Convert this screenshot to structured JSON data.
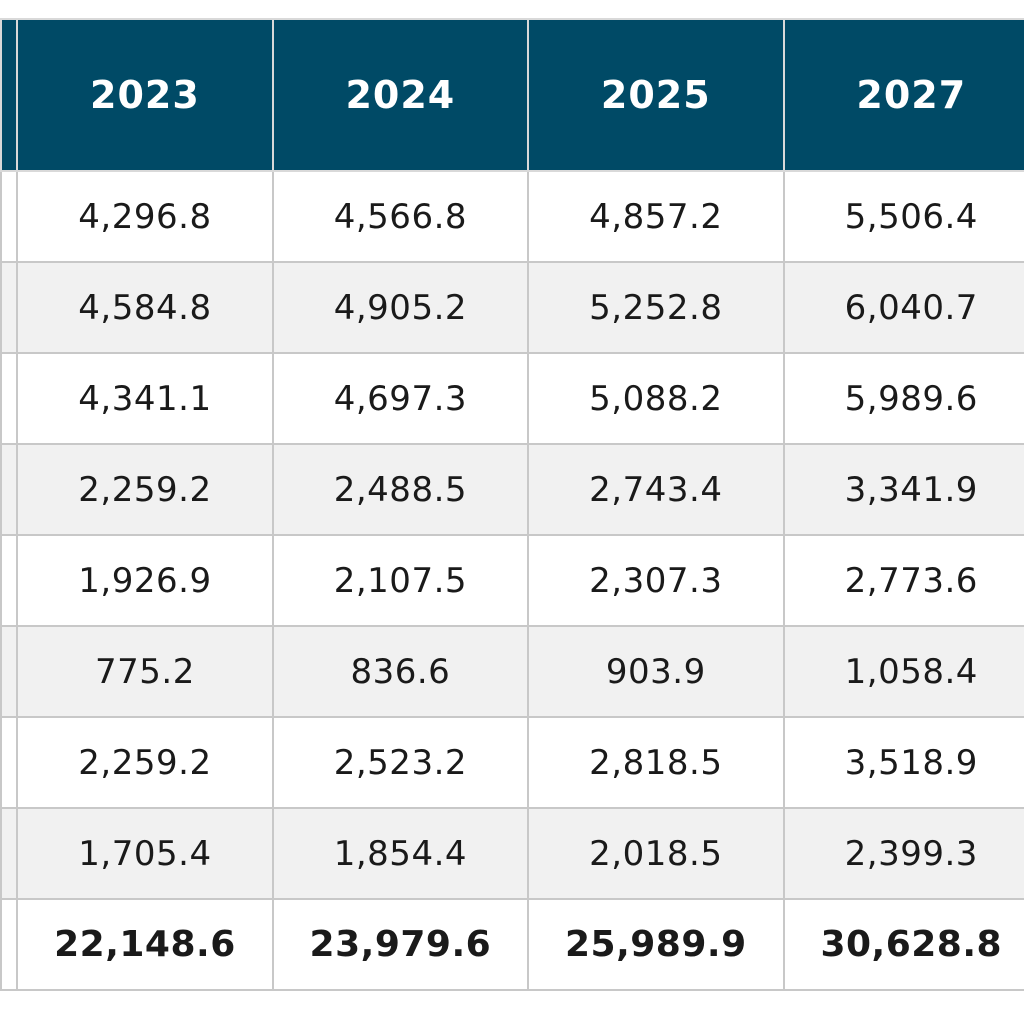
{
  "chart_data": {
    "type": "table",
    "columns": [
      "2023",
      "2024",
      "2025",
      "2027"
    ],
    "rows": [
      [
        "4,296.8",
        "4,566.8",
        "4,857.2",
        "5,506.4"
      ],
      [
        "4,584.8",
        "4,905.2",
        "5,252.8",
        "6,040.7"
      ],
      [
        "4,341.1",
        "4,697.3",
        "5,088.2",
        "5,989.6"
      ],
      [
        "2,259.2",
        "2,488.5",
        "2,743.4",
        "3,341.9"
      ],
      [
        "1,926.9",
        "2,107.5",
        "2,307.3",
        "2,773.6"
      ],
      [
        "775.2",
        "836.6",
        "903.9",
        "1,058.4"
      ],
      [
        "2,259.2",
        "2,523.2",
        "2,818.5",
        "3,518.9"
      ],
      [
        "1,705.4",
        "1,854.4",
        "2,018.5",
        "2,399.3"
      ]
    ],
    "totals": [
      "22,148.6",
      "23,979.6",
      "25,989.9",
      "30,628.8"
    ]
  },
  "colors": {
    "header_bg": "#004a66",
    "header_text": "#ffffff",
    "row_alt_bg": "#f1f1f1",
    "grid": "#c8c8c8"
  }
}
